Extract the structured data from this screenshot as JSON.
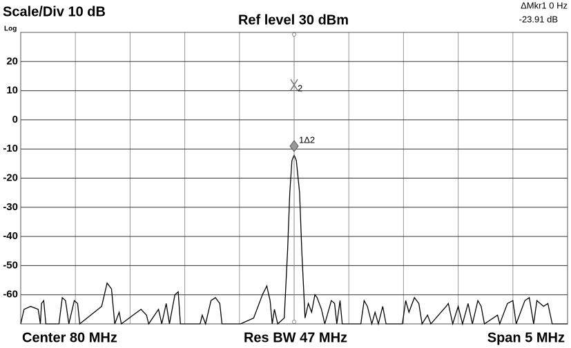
{
  "chart_data": {
    "type": "line",
    "title": "Ref level 30 dBm",
    "scale_label": "Scale/Div 10 dB",
    "scale_mode": "Log",
    "readout": [
      "ΔMkr1 0 Hz",
      "-23.91 dB"
    ],
    "footer": [
      "Center 80 MHz",
      "Res BW 47 MHz",
      "Span 5 MHz"
    ],
    "xlim": [
      77.5,
      82.5
    ],
    "ylim": [
      -70,
      30
    ],
    "yticks": [
      20,
      10,
      0,
      -10,
      -20,
      -30,
      -40,
      -50,
      -60
    ],
    "grid": true,
    "color": "#000000",
    "x": [
      77.5,
      77.53,
      77.59,
      77.66,
      77.68,
      77.69,
      77.71,
      77.73,
      77.85,
      77.88,
      77.91,
      77.94,
      77.99,
      78.02,
      78.04,
      78.24,
      78.29,
      78.33,
      78.36,
      78.4,
      78.42,
      78.6,
      78.65,
      78.67,
      78.76,
      78.79,
      78.83,
      78.86,
      78.91,
      78.94,
      78.96,
      79.14,
      79.16,
      79.19,
      79.24,
      79.28,
      79.32,
      79.34,
      79.51,
      79.63,
      79.71,
      79.75,
      79.78,
      79.8,
      79.82,
      79.85,
      79.91,
      79.94,
      79.96,
      79.98,
      80.0,
      80.02,
      80.05,
      80.07,
      80.1,
      80.13,
      80.16,
      80.19,
      80.21,
      80.25,
      80.28,
      80.34,
      80.37,
      80.39,
      80.42,
      80.44,
      80.61,
      80.64,
      80.67,
      80.71,
      80.74,
      80.77,
      80.81,
      80.84,
      80.99,
      81.02,
      81.05,
      81.1,
      81.14,
      81.17,
      81.22,
      81.25,
      81.39,
      81.41,
      81.45,
      81.5,
      81.54,
      81.59,
      81.63,
      81.68,
      81.71,
      81.74,
      81.86,
      81.88,
      81.95,
      82.0,
      82.03,
      82.11,
      82.15,
      82.19,
      82.22,
      82.28,
      82.32,
      82.36,
      82.5
    ],
    "values": [
      -70,
      -65,
      -64,
      -65,
      -70,
      -63,
      -62,
      -70,
      -70,
      -61,
      -62,
      -70,
      -62,
      -63,
      -70,
      -64,
      -56,
      -58,
      -70,
      -66,
      -70,
      -65,
      -67,
      -70,
      -65,
      -70,
      -63,
      -70,
      -60,
      -59,
      -70,
      -70,
      -67,
      -70,
      -62,
      -61,
      -63,
      -70,
      -70,
      -68,
      -60,
      -57,
      -62,
      -70,
      -65,
      -70,
      -68,
      -45,
      -25,
      -14,
      -12,
      -14,
      -25,
      -45,
      -68,
      -63,
      -66,
      -60,
      -61,
      -65,
      -70,
      -62,
      -63,
      -70,
      -62,
      -70,
      -70,
      -62,
      -64,
      -70,
      -66,
      -70,
      -64,
      -70,
      -70,
      -62,
      -66,
      -61,
      -63,
      -70,
      -67,
      -70,
      -64,
      -63,
      -70,
      -64,
      -70,
      -63,
      -70,
      -62,
      -64,
      -70,
      -67,
      -70,
      -63,
      -62,
      -70,
      -62,
      -61,
      -70,
      -62,
      -64,
      -63,
      -70,
      -70
    ],
    "markers": [
      {
        "label": "1Δ2",
        "x": 80.0,
        "value": -9
      },
      {
        "label": "2",
        "x": 80.0,
        "value": 12
      }
    ]
  }
}
